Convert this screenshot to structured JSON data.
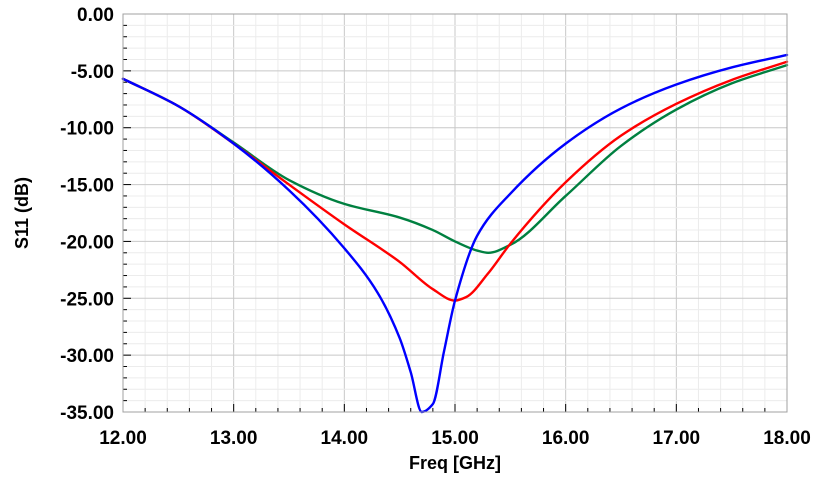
{
  "chart_data": {
    "type": "line",
    "title": "",
    "xlabel": "Freq [GHz]",
    "ylabel": "S11 (dB)",
    "xlim": [
      12,
      18
    ],
    "ylim": [
      -35,
      0
    ],
    "xticks": [
      "12.00",
      "13.00",
      "14.00",
      "15.00",
      "16.00",
      "17.00",
      "18.00"
    ],
    "yticks": [
      "0.00",
      "-5.00",
      "-10.00",
      "-15.00",
      "-20.00",
      "-25.00",
      "-30.00",
      "-35.00"
    ],
    "grid": true,
    "legend": "none",
    "series": [
      {
        "color": "#0000ff",
        "x": [
          12.0,
          12.5,
          13.0,
          13.5,
          14.0,
          14.3,
          14.5,
          14.6,
          14.7,
          14.8,
          14.9,
          15.0,
          15.2,
          15.5,
          16.0,
          16.5,
          17.0,
          17.5,
          18.0
        ],
        "y": [
          -5.7,
          -8.1,
          -11.4,
          -15.5,
          -20.6,
          -24.5,
          -28.5,
          -31.5,
          -35.0,
          -34.3,
          -29.7,
          -25.2,
          -19.5,
          -15.8,
          -11.4,
          -8.3,
          -6.2,
          -4.7,
          -3.6
        ]
      },
      {
        "color": "#ff0000",
        "x": [
          12.0,
          12.5,
          13.0,
          13.5,
          14.0,
          14.5,
          14.8,
          15.0,
          15.1,
          15.3,
          15.5,
          16.0,
          16.5,
          17.0,
          17.5,
          18.0
        ],
        "y": [
          -5.7,
          -8.1,
          -11.4,
          -15.0,
          -18.5,
          -21.8,
          -24.2,
          -25.2,
          -24.9,
          -22.8,
          -20.2,
          -14.8,
          -10.7,
          -7.9,
          -5.8,
          -4.2
        ]
      },
      {
        "color": "#008040",
        "x": [
          12.0,
          12.5,
          13.0,
          13.5,
          14.0,
          14.5,
          14.8,
          15.0,
          15.2,
          15.3,
          15.5,
          16.0,
          16.5,
          17.0,
          17.5,
          18.0
        ],
        "y": [
          -5.7,
          -8.1,
          -11.3,
          -14.6,
          -16.7,
          -17.9,
          -19.0,
          -20.0,
          -20.8,
          -21.0,
          -20.3,
          -16.0,
          -11.6,
          -8.4,
          -6.1,
          -4.5
        ]
      }
    ]
  }
}
